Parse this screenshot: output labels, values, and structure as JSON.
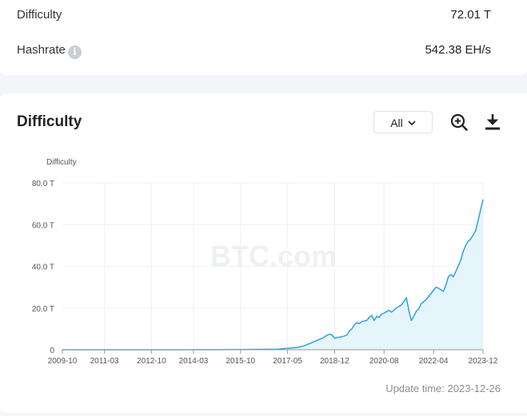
{
  "stats": [
    {
      "label": "Difficulty",
      "value": "72.01 T"
    },
    {
      "label": "Hashrate",
      "value": "542.38 EH/s",
      "info_icon": "info-icon"
    }
  ],
  "chart_card": {
    "title": "Difficulty",
    "range_select": {
      "selected": "All"
    },
    "zoom_icon": "zoom-in-icon",
    "download_icon": "download-icon",
    "watermark": "BTC.com",
    "update_time": "Update time: 2023-12-26"
  },
  "colors": {
    "line": "#2aa3e3",
    "area": "#e6f5fb",
    "grid": "#eef0f3",
    "axis": "#555555"
  },
  "chart_data": {
    "type": "area",
    "ylabel": "Difficulty",
    "ylim": [
      0,
      80
    ],
    "yticks": [
      "0",
      "20.0 T",
      "40.0 T",
      "60.0 T",
      "80.0 T"
    ],
    "ytick_values": [
      0,
      20,
      40,
      60,
      80
    ],
    "xticks": [
      "2009-10",
      "2011-03",
      "2012-10",
      "2014-03",
      "2015-10",
      "2017-05",
      "2018-12",
      "2020-08",
      "2022-04",
      "2023-12"
    ],
    "xlim": [
      "2009-10",
      "2023-12"
    ],
    "grid": true,
    "series": [
      {
        "points": [
          [
            "2009-10",
            0
          ],
          [
            "2012-10",
            0
          ],
          [
            "2014-03",
            0
          ],
          [
            "2015-10",
            0.1
          ],
          [
            "2016-06",
            0.2
          ],
          [
            "2017-01",
            0.3
          ],
          [
            "2017-05",
            0.7
          ],
          [
            "2017-09",
            1.1
          ],
          [
            "2017-12",
            2
          ],
          [
            "2018-02",
            3
          ],
          [
            "2018-04",
            4
          ],
          [
            "2018-07",
            5.5
          ],
          [
            "2018-09",
            7
          ],
          [
            "2018-10",
            7.5
          ],
          [
            "2018-11",
            7
          ],
          [
            "2018-12",
            5.5
          ],
          [
            "2019-01",
            5.8
          ],
          [
            "2019-03",
            6.2
          ],
          [
            "2019-05",
            7
          ],
          [
            "2019-06",
            9
          ],
          [
            "2019-07",
            10
          ],
          [
            "2019-08",
            12
          ],
          [
            "2019-09",
            13
          ],
          [
            "2019-10",
            12.5
          ],
          [
            "2019-11",
            13.5
          ],
          [
            "2020-01",
            14
          ],
          [
            "2020-02",
            15.5
          ],
          [
            "2020-03",
            16.5
          ],
          [
            "2020-04",
            14
          ],
          [
            "2020-05",
            16
          ],
          [
            "2020-06",
            15.5
          ],
          [
            "2020-07",
            17
          ],
          [
            "2020-08",
            17.5
          ],
          [
            "2020-10",
            19
          ],
          [
            "2020-11",
            18
          ],
          [
            "2021-01",
            20
          ],
          [
            "2021-03",
            21.5
          ],
          [
            "2021-04",
            23
          ],
          [
            "2021-05",
            25
          ],
          [
            "2021-06",
            19
          ],
          [
            "2021-07",
            14
          ],
          [
            "2021-08",
            16
          ],
          [
            "2021-09",
            18.5
          ],
          [
            "2021-10",
            19.5
          ],
          [
            "2021-11",
            22
          ],
          [
            "2022-01",
            24
          ],
          [
            "2022-03",
            27
          ],
          [
            "2022-05",
            30
          ],
          [
            "2022-06",
            29.5
          ],
          [
            "2022-08",
            28
          ],
          [
            "2022-09",
            31
          ],
          [
            "2022-10",
            35
          ],
          [
            "2022-11",
            36
          ],
          [
            "2022-12",
            35
          ],
          [
            "2023-01",
            37.5
          ],
          [
            "2023-03",
            43
          ],
          [
            "2023-04",
            47
          ],
          [
            "2023-05",
            50
          ],
          [
            "2023-06",
            52
          ],
          [
            "2023-07",
            53
          ],
          [
            "2023-08",
            55
          ],
          [
            "2023-09",
            57
          ],
          [
            "2023-10",
            62
          ],
          [
            "2023-11",
            67
          ],
          [
            "2023-12",
            72
          ]
        ]
      }
    ]
  }
}
